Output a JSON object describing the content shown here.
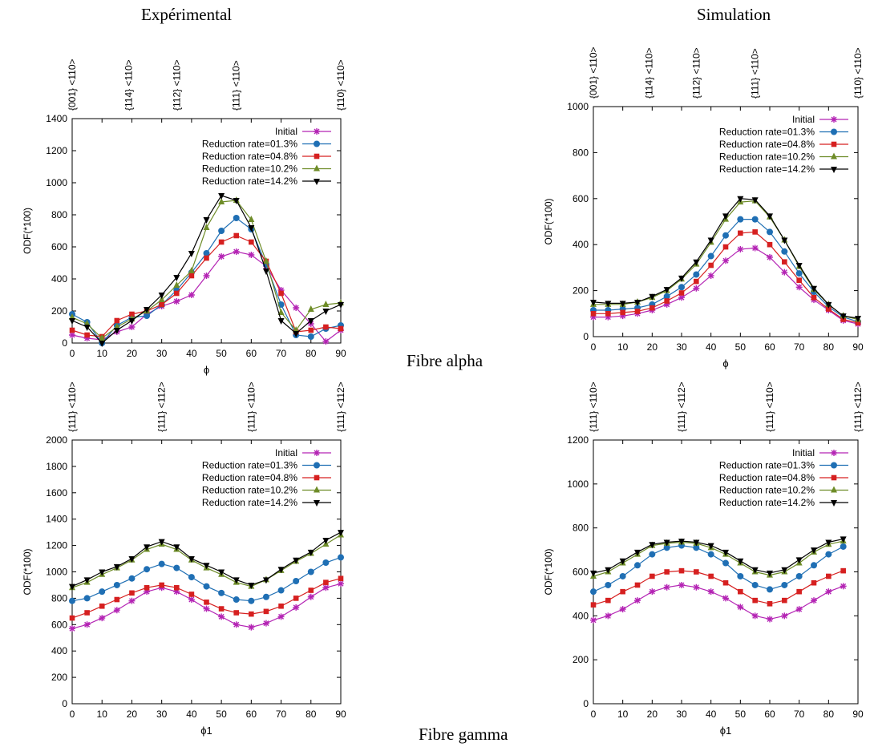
{
  "headers": {
    "left": "Expérimental",
    "right": "Simulation"
  },
  "fibres": {
    "alpha": "Fibre alpha",
    "gamma": "Fibre gamma"
  },
  "colors": {
    "initial": "#b424b4",
    "r013": "#1f6fb4",
    "r048": "#d62020",
    "r102": "#6e8c28",
    "r142": "#000000"
  },
  "chart_data": [
    {
      "type": "line",
      "xlabel": "ϕ",
      "ylabel": "ODF(*100)",
      "xlim": [
        0,
        90
      ],
      "ylim": [
        0,
        1400
      ],
      "xticks": [
        0,
        10,
        20,
        30,
        40,
        50,
        60,
        70,
        80,
        90
      ],
      "yticks": [
        0,
        200,
        400,
        600,
        800,
        1000,
        1200,
        1400
      ],
      "top_labels": [
        {
          "x": 0,
          "label": "{001} <110>"
        },
        {
          "x": 19,
          "label": "{114} <110>"
        },
        {
          "x": 35,
          "label": "{112} <110>"
        },
        {
          "x": 55,
          "label": "{111} <110>"
        },
        {
          "x": 90,
          "label": "{110} <110>"
        }
      ],
      "legend": "top-right",
      "x": [
        0,
        5,
        10,
        15,
        20,
        25,
        30,
        35,
        40,
        45,
        50,
        55,
        60,
        65,
        70,
        75,
        80,
        85,
        90
      ],
      "series": [
        {
          "name": "Initial",
          "marker": "star",
          "values": [
            50,
            30,
            20,
            70,
            100,
            180,
            230,
            260,
            300,
            420,
            540,
            570,
            550,
            480,
            330,
            220,
            120,
            10,
            80
          ]
        },
        {
          "name": "Reduction rate=01.3%",
          "marker": "circle",
          "values": [
            180,
            130,
            0,
            110,
            160,
            170,
            240,
            330,
            440,
            560,
            700,
            780,
            710,
            490,
            240,
            50,
            40,
            90,
            110
          ]
        },
        {
          "name": "Reduction rate=04.8%",
          "marker": "square",
          "values": [
            80,
            50,
            40,
            140,
            180,
            200,
            240,
            310,
            420,
            530,
            630,
            670,
            630,
            510,
            310,
            70,
            80,
            100,
            90
          ]
        },
        {
          "name": "Reduction rate=10.2%",
          "marker": "triangle",
          "values": [
            160,
            120,
            30,
            100,
            150,
            200,
            270,
            360,
            450,
            720,
            880,
            890,
            770,
            510,
            190,
            80,
            210,
            240,
            250
          ]
        },
        {
          "name": "Reduction rate=14.2%",
          "marker": "invtriangle",
          "values": [
            140,
            100,
            0,
            80,
            140,
            210,
            300,
            410,
            560,
            770,
            920,
            890,
            720,
            450,
            140,
            60,
            140,
            200,
            240
          ]
        }
      ]
    },
    {
      "type": "line",
      "xlabel": "ϕ",
      "ylabel": "ODF(*100)",
      "xlim": [
        0,
        90
      ],
      "ylim": [
        0,
        1000
      ],
      "xticks": [
        0,
        10,
        20,
        30,
        40,
        50,
        60,
        70,
        80,
        90
      ],
      "yticks": [
        0,
        200,
        400,
        600,
        800,
        1000
      ],
      "top_labels": [
        {
          "x": 0,
          "label": "{001} <110>"
        },
        {
          "x": 19,
          "label": "{114} <110>"
        },
        {
          "x": 35,
          "label": "{112} <110>"
        },
        {
          "x": 55,
          "label": "{111} <110>"
        },
        {
          "x": 90,
          "label": "{110} <110>"
        }
      ],
      "legend": "top-right",
      "x": [
        0,
        5,
        10,
        15,
        20,
        25,
        30,
        35,
        40,
        45,
        50,
        55,
        60,
        65,
        70,
        75,
        80,
        85,
        90
      ],
      "series": [
        {
          "name": "Initial",
          "marker": "star",
          "values": [
            85,
            85,
            90,
            100,
            115,
            140,
            170,
            210,
            265,
            330,
            380,
            385,
            345,
            280,
            215,
            160,
            115,
            70,
            55
          ]
        },
        {
          "name": "Reduction rate=01.3%",
          "marker": "circle",
          "values": [
            115,
            115,
            120,
            125,
            140,
            175,
            215,
            270,
            350,
            440,
            510,
            510,
            455,
            370,
            275,
            195,
            130,
            85,
            65
          ]
        },
        {
          "name": "Reduction rate=04.8%",
          "marker": "square",
          "values": [
            100,
            100,
            105,
            110,
            125,
            155,
            190,
            240,
            310,
            390,
            450,
            455,
            400,
            325,
            245,
            170,
            120,
            75,
            60
          ]
        },
        {
          "name": "Reduction rate=10.2%",
          "marker": "triangle",
          "values": [
            140,
            140,
            140,
            150,
            170,
            200,
            250,
            315,
            410,
            510,
            585,
            590,
            520,
            420,
            305,
            205,
            140,
            90,
            75
          ]
        },
        {
          "name": "Reduction rate=14.2%",
          "marker": "invtriangle",
          "values": [
            150,
            145,
            145,
            150,
            175,
            205,
            255,
            325,
            420,
            525,
            600,
            595,
            525,
            420,
            310,
            210,
            140,
            90,
            80
          ]
        }
      ]
    },
    {
      "type": "line",
      "xlabel": "ϕ1",
      "ylabel": "ODF(*100)",
      "xlim": [
        0,
        90
      ],
      "ylim": [
        0,
        2000
      ],
      "xticks": [
        0,
        10,
        20,
        30,
        40,
        50,
        60,
        70,
        80,
        90
      ],
      "yticks": [
        0,
        200,
        400,
        600,
        800,
        1000,
        1200,
        1400,
        1600,
        1800,
        2000
      ],
      "top_labels": [
        {
          "x": 0,
          "label": "{111} <110>"
        },
        {
          "x": 30,
          "label": "{111} <112>"
        },
        {
          "x": 60,
          "label": "{111} <110>"
        },
        {
          "x": 90,
          "label": "{111} <112>"
        }
      ],
      "legend": "top-right",
      "x": [
        0,
        5,
        10,
        15,
        20,
        25,
        30,
        35,
        40,
        45,
        50,
        55,
        60,
        65,
        70,
        75,
        80,
        85,
        90
      ],
      "series": [
        {
          "name": "Initial",
          "marker": "star",
          "values": [
            570,
            600,
            650,
            710,
            780,
            850,
            880,
            850,
            790,
            720,
            660,
            600,
            580,
            610,
            660,
            730,
            810,
            880,
            910
          ]
        },
        {
          "name": "Reduction rate=01.3%",
          "marker": "circle",
          "values": [
            780,
            800,
            850,
            900,
            950,
            1020,
            1060,
            1030,
            960,
            890,
            840,
            790,
            780,
            810,
            860,
            930,
            1000,
            1070,
            1110
          ]
        },
        {
          "name": "Reduction rate=04.8%",
          "marker": "square",
          "values": [
            650,
            690,
            740,
            790,
            840,
            880,
            900,
            880,
            830,
            770,
            720,
            690,
            680,
            700,
            740,
            800,
            860,
            920,
            950
          ]
        },
        {
          "name": "Reduction rate=10.2%",
          "marker": "triangle",
          "values": [
            880,
            920,
            980,
            1030,
            1090,
            1170,
            1210,
            1170,
            1090,
            1030,
            980,
            920,
            890,
            940,
            1010,
            1080,
            1140,
            1210,
            1280
          ]
        },
        {
          "name": "Reduction rate=14.2%",
          "marker": "invtriangle",
          "values": [
            890,
            940,
            1000,
            1040,
            1100,
            1190,
            1230,
            1190,
            1100,
            1050,
            1000,
            940,
            900,
            940,
            1020,
            1090,
            1150,
            1240,
            1300
          ]
        }
      ]
    },
    {
      "type": "line",
      "xlabel": "ϕ1",
      "ylabel": "ODF(*100)",
      "xlim": [
        0,
        90
      ],
      "ylim": [
        0,
        1200
      ],
      "xticks": [
        0,
        10,
        20,
        30,
        40,
        50,
        60,
        70,
        80,
        90
      ],
      "yticks": [
        0,
        200,
        400,
        600,
        800,
        1000,
        1200
      ],
      "top_labels": [
        {
          "x": 0,
          "label": "{111} <110>"
        },
        {
          "x": 30,
          "label": "{111} <112>"
        },
        {
          "x": 60,
          "label": "{111} <110>"
        },
        {
          "x": 90,
          "label": "{111} <112>"
        }
      ],
      "legend": "top-right",
      "x": [
        0,
        5,
        10,
        15,
        20,
        25,
        30,
        35,
        40,
        45,
        50,
        55,
        60,
        65,
        70,
        75,
        80,
        85
      ],
      "series": [
        {
          "name": "Initial",
          "marker": "star",
          "values": [
            380,
            400,
            430,
            470,
            510,
            530,
            540,
            530,
            510,
            480,
            440,
            400,
            385,
            400,
            430,
            470,
            510,
            535
          ]
        },
        {
          "name": "Reduction rate=01.3%",
          "marker": "circle",
          "values": [
            510,
            540,
            580,
            630,
            680,
            710,
            720,
            710,
            680,
            640,
            580,
            540,
            520,
            540,
            580,
            630,
            680,
            715
          ]
        },
        {
          "name": "Reduction rate=04.8%",
          "marker": "square",
          "values": [
            450,
            470,
            510,
            540,
            580,
            600,
            605,
            600,
            580,
            550,
            510,
            470,
            455,
            470,
            510,
            550,
            580,
            605
          ]
        },
        {
          "name": "Reduction rate=10.2%",
          "marker": "triangle",
          "values": [
            580,
            600,
            640,
            680,
            720,
            730,
            735,
            730,
            710,
            680,
            640,
            600,
            585,
            600,
            640,
            690,
            725,
            740
          ]
        },
        {
          "name": "Reduction rate=14.2%",
          "marker": "invtriangle",
          "values": [
            595,
            610,
            650,
            690,
            725,
            735,
            740,
            735,
            720,
            690,
            650,
            610,
            595,
            610,
            655,
            700,
            735,
            750
          ]
        }
      ]
    }
  ]
}
